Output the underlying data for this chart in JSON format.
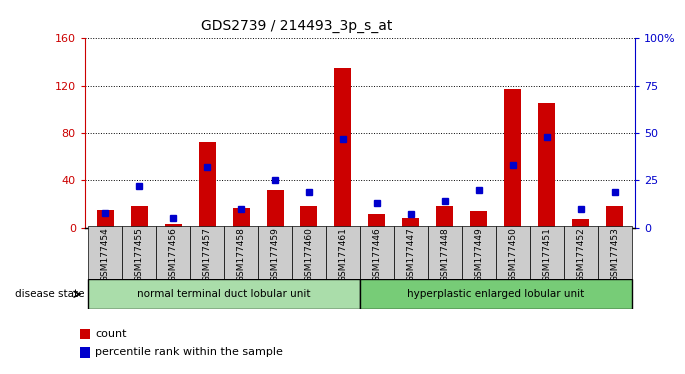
{
  "title": "GDS2739 / 214493_3p_s_at",
  "samples": [
    "GSM177454",
    "GSM177455",
    "GSM177456",
    "GSM177457",
    "GSM177458",
    "GSM177459",
    "GSM177460",
    "GSM177461",
    "GSM177446",
    "GSM177447",
    "GSM177448",
    "GSM177449",
    "GSM177450",
    "GSM177451",
    "GSM177452",
    "GSM177453"
  ],
  "counts": [
    15,
    18,
    3,
    72,
    17,
    32,
    18,
    135,
    12,
    8,
    18,
    14,
    117,
    105,
    7,
    18
  ],
  "percentiles": [
    8,
    22,
    5,
    32,
    10,
    25,
    19,
    47,
    13,
    7,
    14,
    20,
    33,
    48,
    10,
    19
  ],
  "group1_label": "normal terminal duct lobular unit",
  "group1_count": 8,
  "group2_label": "hyperplastic enlarged lobular unit",
  "group2_count": 8,
  "disease_state_label": "disease state",
  "ylim_left": [
    0,
    160
  ],
  "ylim_right": [
    0,
    100
  ],
  "yticks_left": [
    0,
    40,
    80,
    120,
    160
  ],
  "ytick_labels_left": [
    "0",
    "40",
    "80",
    "120",
    "160"
  ],
  "yticks_right": [
    0,
    25,
    50,
    75,
    100
  ],
  "ytick_labels_right": [
    "0",
    "25",
    "50",
    "75",
    "100%"
  ],
  "bar_color_count": "#cc0000",
  "bar_color_pct": "#0000cc",
  "bg_color": "#ffffff",
  "group1_color": "#aaddaa",
  "group2_color": "#77cc77",
  "legend_count_label": "count",
  "legend_pct_label": "percentile rank within the sample"
}
